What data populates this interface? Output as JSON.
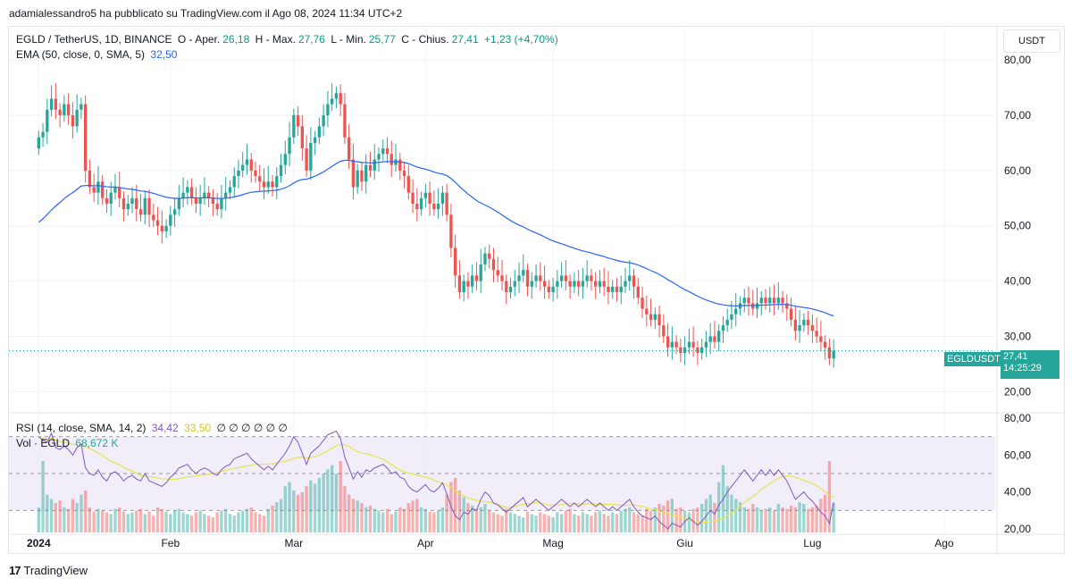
{
  "header": {
    "attribution": "adamialessandro5 ha pubblicato su TradingView.com il Ago 08, 2024 11:34 UTC+2"
  },
  "legend": {
    "symbol": "EGLD / TetherUS, 1D, BINANCE",
    "open_label": "O - Aper.",
    "open": "26,18",
    "high_label": "H - Max.",
    "high": "27,76",
    "low_label": "L - Min.",
    "low": "25,77",
    "close_label": "C - Chius.",
    "close": "27,41",
    "change": "+1,23 (+4,70%)",
    "ema_label": "EMA (50, close, 0, SMA, 5)",
    "ema_value": "32,50"
  },
  "indicator_legend": {
    "rsi_label": "RSI (14, close, SMA, 14, 2)",
    "rsi_value": "34,42",
    "rsi_ma_value": "33,50",
    "rsi_extra": "∅ ∅ ∅ ∅ ∅ ∅",
    "vol_label": "Vol · EGLD",
    "vol_value": "68,672 K"
  },
  "currency_button": "USDT",
  "price_tag": {
    "symbol": "EGLDUSDT",
    "price": "27,41",
    "countdown": "14:25:29"
  },
  "footer": {
    "logo": "17",
    "brand": "TradingView"
  },
  "colors": {
    "up": "#26a69a",
    "down": "#ef5350",
    "ema": "#2962ff",
    "rsi": "#7e57c2",
    "rsi_ma": "#e8e34a",
    "rsi_band": "#ede7f6"
  },
  "chart_data": {
    "type": "candlestick",
    "x_ticks": [
      {
        "label": "2024",
        "day": 0
      },
      {
        "label": "Feb",
        "day": 31
      },
      {
        "label": "Mar",
        "day": 60
      },
      {
        "label": "Apr",
        "day": 91
      },
      {
        "label": "Mag",
        "day": 121
      },
      {
        "label": "Giu",
        "day": 152
      },
      {
        "label": "Lug",
        "day": 182
      },
      {
        "label": "Ago",
        "day": 213
      }
    ],
    "price_ticks": [
      "80,00",
      "70,00",
      "60,00",
      "50,00",
      "40,00",
      "30,00",
      "20,00"
    ],
    "price_tick_values": [
      80,
      70,
      60,
      50,
      40,
      30,
      20
    ],
    "price_ylim": [
      16.5,
      86
    ],
    "rsi_ticks": [
      "80,00",
      "60,00",
      "40,00",
      "20,00"
    ],
    "rsi_tick_values": [
      80,
      60,
      40,
      20
    ],
    "rsi_ylim": [
      18,
      82
    ],
    "rsi_band": [
      30,
      70
    ],
    "rsi_mid": 50,
    "x_range_days": [
      -7,
      225
    ],
    "last_close": 27.41,
    "closes": [
      66,
      67,
      71,
      73,
      71,
      70,
      72,
      70,
      68,
      71,
      72,
      60,
      57,
      56,
      58,
      55,
      54,
      56,
      57,
      55,
      53,
      54,
      55,
      53,
      52,
      55,
      52,
      51,
      50,
      49,
      50,
      52,
      53,
      55,
      56,
      57,
      55,
      54,
      55,
      56,
      55,
      54,
      53,
      55,
      56,
      57,
      59,
      60,
      61,
      62,
      60,
      59,
      58,
      57,
      58,
      57,
      59,
      61,
      63,
      66,
      70,
      68,
      64,
      60,
      65,
      66,
      68,
      70,
      72,
      73,
      74,
      72,
      66,
      62,
      57,
      60,
      58,
      61,
      60,
      62,
      63,
      64,
      63,
      61,
      62,
      60,
      59,
      56,
      54,
      53,
      55,
      56,
      54,
      53,
      54,
      56,
      52,
      46,
      41,
      38,
      40,
      39,
      41,
      40,
      43,
      45,
      44,
      42,
      41,
      40,
      38,
      39,
      40,
      41,
      42,
      39,
      40,
      41,
      40,
      39,
      38,
      39,
      40,
      41,
      40,
      39,
      40,
      39,
      40,
      41,
      40,
      39,
      40,
      39,
      38,
      39,
      38,
      39,
      40,
      41,
      39,
      37,
      35,
      34,
      33,
      34,
      32,
      30,
      28,
      29,
      28,
      27,
      28,
      29,
      28,
      27,
      28,
      29,
      30,
      29,
      31,
      32,
      33,
      34,
      35,
      36,
      37,
      36,
      35,
      36,
      37,
      36,
      37,
      36,
      37,
      36,
      35,
      33,
      31,
      32,
      33,
      32,
      31,
      30,
      29,
      28,
      26,
      27.41
    ],
    "rsi": [
      70,
      68,
      67,
      72,
      64,
      63,
      65,
      63,
      60,
      64,
      66,
      53,
      50,
      49,
      52,
      48,
      46,
      50,
      51,
      49,
      46,
      48,
      49,
      47,
      46,
      50,
      46,
      45,
      44,
      43,
      45,
      48,
      50,
      53,
      54,
      55,
      52,
      50,
      52,
      53,
      52,
      50,
      49,
      52,
      54,
      55,
      58,
      59,
      60,
      61,
      58,
      56,
      54,
      52,
      54,
      52,
      55,
      58,
      61,
      65,
      70,
      67,
      61,
      55,
      61,
      63,
      65,
      68,
      71,
      72,
      73,
      69,
      59,
      53,
      47,
      51,
      48,
      52,
      51,
      53,
      54,
      55,
      53,
      50,
      51,
      48,
      47,
      43,
      41,
      40,
      42,
      44,
      41,
      40,
      42,
      45,
      39,
      32,
      27,
      25,
      29,
      28,
      31,
      30,
      36,
      40,
      38,
      34,
      33,
      31,
      29,
      31,
      33,
      35,
      37,
      32,
      34,
      36,
      34,
      32,
      30,
      32,
      34,
      36,
      34,
      32,
      34,
      32,
      34,
      36,
      34,
      32,
      34,
      32,
      30,
      32,
      30,
      32,
      34,
      36,
      32,
      29,
      27,
      26,
      25,
      27,
      24,
      22,
      20,
      23,
      22,
      21,
      24,
      26,
      24,
      22,
      24,
      27,
      30,
      28,
      33,
      36,
      40,
      43,
      46,
      49,
      52,
      49,
      46,
      49,
      52,
      49,
      52,
      49,
      52,
      49,
      46,
      41,
      36,
      38,
      40,
      37,
      35,
      32,
      29,
      27,
      23,
      34.42
    ],
    "rsi_ma_value": 33.5,
    "volumes": [
      30,
      85,
      45,
      40,
      35,
      38,
      30,
      28,
      40,
      35,
      45,
      50,
      30,
      25,
      28,
      26,
      24,
      22,
      28,
      30,
      25,
      22,
      24,
      26,
      28,
      22,
      25,
      20,
      30,
      28,
      25,
      22,
      26,
      28,
      24,
      22,
      20,
      24,
      26,
      22,
      20,
      18,
      24,
      26,
      28,
      22,
      20,
      24,
      26,
      28,
      30,
      24,
      22,
      20,
      28,
      32,
      36,
      40,
      55,
      60,
      50,
      45,
      48,
      55,
      62,
      58,
      65,
      70,
      75,
      80,
      70,
      85,
      55,
      45,
      40,
      38,
      35,
      30,
      32,
      28,
      26,
      24,
      28,
      22,
      25,
      30,
      28,
      35,
      38,
      40,
      30,
      28,
      25,
      24,
      26,
      30,
      45,
      60,
      65,
      50,
      42,
      35,
      32,
      28,
      30,
      34,
      26,
      24,
      22,
      20,
      28,
      24,
      22,
      20,
      18,
      25,
      22,
      20,
      24,
      22,
      20,
      18,
      24,
      22,
      26,
      28,
      22,
      20,
      24,
      22,
      20,
      24,
      26,
      22,
      20,
      24,
      22,
      26,
      28,
      30,
      24,
      22,
      20,
      28,
      26,
      30,
      34,
      32,
      38,
      40,
      28,
      30,
      26,
      24,
      28,
      30,
      34,
      40,
      45,
      35,
      60,
      80,
      55,
      45,
      40,
      36,
      30,
      28,
      34,
      30,
      26,
      28,
      30,
      26,
      34,
      30,
      28,
      32,
      30,
      36,
      34,
      28,
      30,
      32,
      40,
      45,
      85,
      35
    ]
  }
}
